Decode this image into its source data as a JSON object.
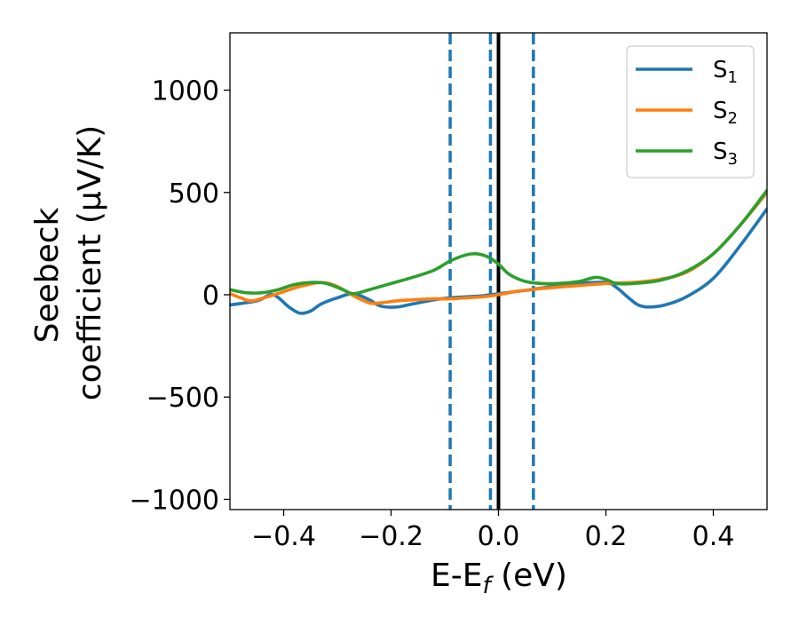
{
  "chart_data": {
    "type": "line",
    "title": "",
    "xlabel_parts": [
      "E-E",
      "f",
      " (eV)"
    ],
    "ylabel_lines": [
      "Seebeck",
      "coefficient  (μV/K)"
    ],
    "xlim": [
      -0.5,
      0.5
    ],
    "ylim": [
      -1050,
      1280
    ],
    "xticks": [
      -0.4,
      -0.2,
      0.0,
      0.2,
      0.4
    ],
    "xtick_labels": [
      "−0.4",
      "−0.2",
      "0.0",
      "0.2",
      "0.4"
    ],
    "yticks": [
      -1000,
      -500,
      0,
      500,
      1000
    ],
    "ytick_labels": [
      "−1000",
      "−500",
      "0",
      "500",
      "1000"
    ],
    "grid": false,
    "legend_position": "top-right",
    "vertical_lines": [
      {
        "x": -0.09,
        "style": "dashed",
        "color": "#1f77b4"
      },
      {
        "x": -0.015,
        "style": "dashed",
        "color": "#1f77b4"
      },
      {
        "x": 0.065,
        "style": "dashed",
        "color": "#1f77b4"
      },
      {
        "x": 0.0,
        "style": "solid",
        "color": "#000000"
      }
    ],
    "series": [
      {
        "name_main": "S",
        "name_sub": "1",
        "color": "#1f77b4",
        "x": [
          -0.5,
          -0.45,
          -0.42,
          -0.39,
          -0.37,
          -0.35,
          -0.33,
          -0.3,
          -0.27,
          -0.24,
          -0.22,
          -0.19,
          -0.16,
          -0.12,
          -0.09,
          -0.06,
          -0.03,
          0.0,
          0.03,
          0.06,
          0.1,
          0.15,
          0.2,
          0.22,
          0.24,
          0.26,
          0.28,
          0.31,
          0.35,
          0.4,
          0.45,
          0.5
        ],
        "y": [
          -50,
          -30,
          0,
          -60,
          -90,
          -80,
          -45,
          -15,
          5,
          -25,
          -55,
          -60,
          -45,
          -25,
          -15,
          -10,
          -5,
          5,
          15,
          25,
          40,
          55,
          60,
          35,
          -10,
          -50,
          -60,
          -50,
          -10,
          80,
          240,
          420
        ]
      },
      {
        "name_main": "S",
        "name_sub": "2",
        "color": "#ff7f0e",
        "x": [
          -0.5,
          -0.48,
          -0.46,
          -0.43,
          -0.4,
          -0.37,
          -0.33,
          -0.3,
          -0.27,
          -0.24,
          -0.22,
          -0.19,
          -0.16,
          -0.12,
          -0.09,
          -0.06,
          -0.03,
          0.0,
          0.03,
          0.06,
          0.1,
          0.15,
          0.2,
          0.25,
          0.3,
          0.35,
          0.4,
          0.45,
          0.5
        ],
        "y": [
          5,
          -15,
          -30,
          -10,
          15,
          40,
          60,
          40,
          -5,
          -40,
          -40,
          -30,
          -25,
          -20,
          -20,
          -15,
          -10,
          0,
          15,
          25,
          35,
          45,
          55,
          60,
          75,
          110,
          200,
          340,
          500
        ]
      },
      {
        "name_main": "S",
        "name_sub": "3",
        "color": "#2ca02c",
        "x": [
          -0.5,
          -0.47,
          -0.44,
          -0.41,
          -0.38,
          -0.35,
          -0.32,
          -0.29,
          -0.27,
          -0.24,
          -0.2,
          -0.16,
          -0.12,
          -0.09,
          -0.06,
          -0.04,
          -0.02,
          0.0,
          0.02,
          0.05,
          0.08,
          0.11,
          0.15,
          0.18,
          0.2,
          0.22,
          0.25,
          0.3,
          0.35,
          0.4,
          0.45,
          0.5
        ],
        "y": [
          25,
          10,
          10,
          25,
          50,
          60,
          55,
          25,
          5,
          25,
          55,
          85,
          120,
          165,
          195,
          200,
          185,
          150,
          100,
          65,
          55,
          55,
          65,
          85,
          75,
          55,
          55,
          70,
          115,
          200,
          340,
          510
        ]
      }
    ]
  }
}
